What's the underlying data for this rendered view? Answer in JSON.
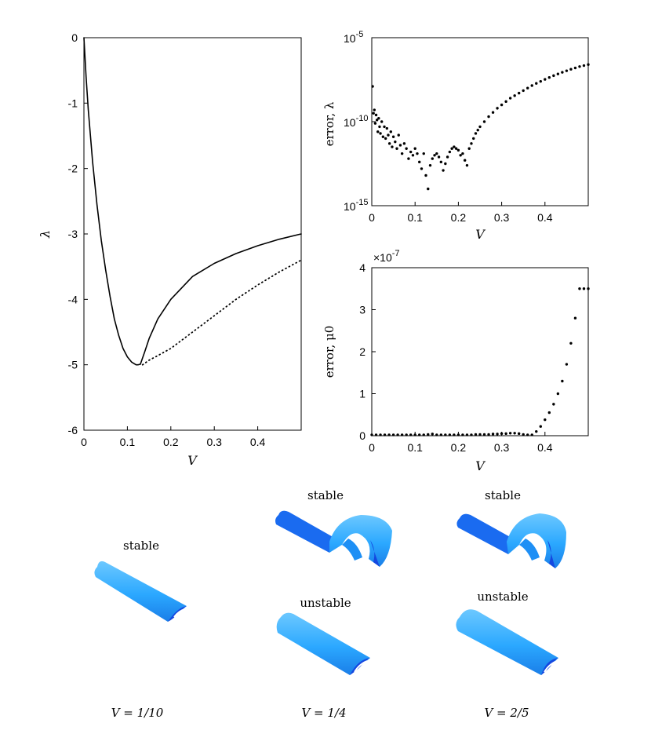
{
  "chart_data": [
    {
      "type": "line",
      "xlabel": "V",
      "ylabel": "λ",
      "xlim": [
        0,
        0.5
      ],
      "ylim": [
        -6,
        0
      ],
      "xticks": [
        "0",
        "0.1",
        "0.2",
        "0.3",
        "0.4"
      ],
      "yticks": [
        "0",
        "-1",
        "-2",
        "-3",
        "-4",
        "-5",
        "-6"
      ],
      "grid": false,
      "series": [
        {
          "style": "solid",
          "color": "#000000",
          "x": [
            0,
            0.005,
            0.01,
            0.02,
            0.03,
            0.04,
            0.05,
            0.06,
            0.07,
            0.08,
            0.09,
            0.1,
            0.11,
            0.12,
            0.125,
            0.13
          ],
          "y": [
            0,
            -0.6,
            -1.1,
            -1.9,
            -2.55,
            -3.1,
            -3.55,
            -3.95,
            -4.3,
            -4.55,
            -4.75,
            -4.88,
            -4.96,
            -5.0,
            -5.0,
            -4.99
          ]
        },
        {
          "style": "solid",
          "color": "#000000",
          "x": [
            0.13,
            0.14,
            0.15,
            0.17,
            0.2,
            0.25,
            0.3,
            0.35,
            0.4,
            0.45,
            0.5
          ],
          "y": [
            -4.99,
            -4.8,
            -4.6,
            -4.3,
            -4.0,
            -3.65,
            -3.45,
            -3.3,
            -3.18,
            -3.08,
            -3.0
          ]
        },
        {
          "style": "dotted",
          "color": "#000000",
          "x": [
            0.135,
            0.15,
            0.17,
            0.2,
            0.25,
            0.3,
            0.35,
            0.4,
            0.45,
            0.5
          ],
          "y": [
            -5.0,
            -4.93,
            -4.86,
            -4.75,
            -4.5,
            -4.25,
            -4.0,
            -3.78,
            -3.58,
            -3.4
          ]
        }
      ]
    },
    {
      "type": "scatter",
      "xlabel": "V",
      "ylabel": "error, λ",
      "yscale": "log",
      "xlim": [
        0,
        0.5
      ],
      "ylim_exponent": [
        -15,
        -5
      ],
      "xticks": [
        "0",
        "0.1",
        "0.2",
        "0.3",
        "0.4"
      ],
      "yticks_base": "10",
      "yticks_exp": [
        "-5",
        "-10",
        "-15"
      ],
      "grid": false,
      "x": [
        0.002,
        0.004,
        0.006,
        0.008,
        0.01,
        0.012,
        0.014,
        0.016,
        0.018,
        0.02,
        0.023,
        0.026,
        0.029,
        0.032,
        0.035,
        0.038,
        0.041,
        0.044,
        0.047,
        0.05,
        0.054,
        0.058,
        0.062,
        0.066,
        0.07,
        0.075,
        0.08,
        0.085,
        0.09,
        0.095,
        0.1,
        0.105,
        0.11,
        0.115,
        0.12,
        0.125,
        0.13,
        0.135,
        0.14,
        0.145,
        0.15,
        0.155,
        0.16,
        0.165,
        0.17,
        0.175,
        0.18,
        0.185,
        0.19,
        0.195,
        0.2,
        0.205,
        0.21,
        0.215,
        0.22,
        0.225,
        0.23,
        0.235,
        0.24,
        0.245,
        0.25,
        0.26,
        0.27,
        0.28,
        0.29,
        0.3,
        0.31,
        0.32,
        0.33,
        0.34,
        0.35,
        0.36,
        0.37,
        0.38,
        0.39,
        0.4,
        0.41,
        0.42,
        0.43,
        0.44,
        0.45,
        0.46,
        0.47,
        0.48,
        0.49,
        0.5
      ],
      "y_exp": [
        -7.9,
        -9.5,
        -9.3,
        -10.1,
        -9.6,
        -9.9,
        -10.6,
        -9.8,
        -10.3,
        -10.7,
        -10.0,
        -10.9,
        -10.3,
        -11.0,
        -10.4,
        -10.8,
        -11.3,
        -10.6,
        -11.5,
        -10.9,
        -11.2,
        -11.6,
        -10.8,
        -11.4,
        -11.9,
        -11.3,
        -11.6,
        -12.2,
        -11.8,
        -12.0,
        -11.6,
        -11.9,
        -12.4,
        -12.8,
        -11.9,
        -13.2,
        -14.0,
        -12.6,
        -12.2,
        -12.0,
        -11.9,
        -12.1,
        -12.4,
        -12.9,
        -12.5,
        -12.1,
        -11.8,
        -11.6,
        -11.5,
        -11.6,
        -11.7,
        -12.0,
        -11.9,
        -12.3,
        -12.6,
        -11.6,
        -11.3,
        -11.0,
        -10.7,
        -10.5,
        -10.3,
        -10.0,
        -9.7,
        -9.45,
        -9.2,
        -9.0,
        -8.8,
        -8.6,
        -8.45,
        -8.3,
        -8.15,
        -8.0,
        -7.85,
        -7.72,
        -7.6,
        -7.48,
        -7.37,
        -7.26,
        -7.16,
        -7.06,
        -6.97,
        -6.88,
        -6.8,
        -6.72,
        -6.66,
        -6.6
      ]
    },
    {
      "type": "scatter",
      "xlabel": "V",
      "ylabel": "error, μ0",
      "xlim": [
        0,
        0.5
      ],
      "ylim": [
        0,
        4
      ],
      "y_multiplier": "×10",
      "y_multiplier_exp": "-7",
      "xticks": [
        "0",
        "0.1",
        "0.2",
        "0.3",
        "0.4"
      ],
      "yticks": [
        "0",
        "1",
        "2",
        "3",
        "4"
      ],
      "grid": false,
      "x": [
        0,
        0.01,
        0.02,
        0.03,
        0.04,
        0.05,
        0.06,
        0.07,
        0.08,
        0.09,
        0.1,
        0.11,
        0.12,
        0.13,
        0.14,
        0.15,
        0.16,
        0.17,
        0.18,
        0.19,
        0.2,
        0.21,
        0.22,
        0.23,
        0.24,
        0.25,
        0.26,
        0.27,
        0.28,
        0.29,
        0.3,
        0.31,
        0.32,
        0.33,
        0.34,
        0.35,
        0.36,
        0.37,
        0.38,
        0.39,
        0.4,
        0.41,
        0.42,
        0.43,
        0.44,
        0.45,
        0.46,
        0.47,
        0.48,
        0.49,
        0.5
      ],
      "y": [
        0.02,
        0.02,
        0.02,
        0.02,
        0.02,
        0.02,
        0.02,
        0.02,
        0.02,
        0.02,
        0.02,
        0.02,
        0.02,
        0.03,
        0.04,
        0.02,
        0.02,
        0.02,
        0.02,
        0.02,
        0.02,
        0.02,
        0.02,
        0.02,
        0.03,
        0.03,
        0.03,
        0.03,
        0.04,
        0.04,
        0.05,
        0.05,
        0.06,
        0.06,
        0.05,
        0.03,
        0.02,
        0.02,
        0.1,
        0.22,
        0.38,
        0.55,
        0.75,
        1.0,
        1.3,
        1.7,
        2.2,
        2.8,
        3.5,
        3.5,
        3.5
      ]
    }
  ],
  "shapes": {
    "color_light": "#2ba8ff",
    "color_dark": "#1448e0",
    "groups": [
      {
        "caption": "V = 1/10",
        "labels": [
          "stable"
        ]
      },
      {
        "caption": "V = 1/4",
        "labels": [
          "stable",
          "unstable"
        ]
      },
      {
        "caption": "V = 2/5",
        "labels": [
          "stable",
          "unstable"
        ]
      }
    ]
  }
}
